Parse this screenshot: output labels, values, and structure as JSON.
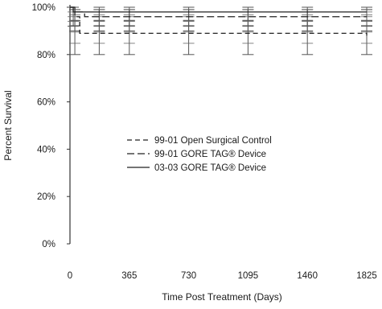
{
  "chart_data": {
    "type": "line",
    "xlabel": "Time Post Treatment (Days)",
    "ylabel": "Percent Survival",
    "xlim": [
      0,
      1825
    ],
    "ylim": [
      0,
      100
    ],
    "x_ticks": [
      0,
      365,
      730,
      1095,
      1460,
      1825
    ],
    "x_tick_labels": [
      "0",
      "365",
      "730",
      "1095",
      "1460",
      "1825"
    ],
    "y_ticks": [
      0,
      20,
      40,
      60,
      80,
      100
    ],
    "y_tick_labels": [
      "0%",
      "20%",
      "40%",
      "60%",
      "80%",
      "100%"
    ],
    "grid": false,
    "legend_placement": "center",
    "series": [
      {
        "name": "99-01 Open Surgical Control",
        "style": "dashed",
        "x": [
          0,
          30,
          60,
          1825
        ],
        "y": [
          100,
          96,
          89,
          88
        ],
        "error_x": [
          30,
          180,
          365,
          730,
          1095,
          1460,
          1825
        ],
        "error_low": [
          80,
          80,
          80,
          80,
          80,
          80,
          80
        ],
        "error_high": [
          99,
          99,
          99,
          99,
          99,
          99,
          99
        ]
      },
      {
        "name": "99-01 GORE TAG® Device",
        "style": "dashed",
        "x": [
          0,
          30,
          90,
          1825
        ],
        "y": [
          100,
          98,
          96,
          96
        ],
        "error_x": [
          30,
          180,
          365,
          730,
          1095,
          1460,
          1825
        ],
        "error_low": [
          90,
          90,
          90,
          90,
          90,
          90,
          90
        ],
        "error_high": [
          99,
          99,
          99,
          99,
          99,
          99,
          99
        ]
      },
      {
        "name": "03-03 GORE TAG® Device",
        "style": "solid",
        "x": [
          0,
          20,
          1825
        ],
        "y": [
          100,
          98,
          98
        ],
        "error_x": [
          20,
          180,
          365,
          730,
          1095,
          1460,
          1825
        ],
        "error_low": [
          92,
          92,
          92,
          92,
          92,
          92,
          92
        ],
        "error_high": [
          100,
          100,
          100,
          100,
          100,
          100,
          100
        ]
      }
    ]
  }
}
